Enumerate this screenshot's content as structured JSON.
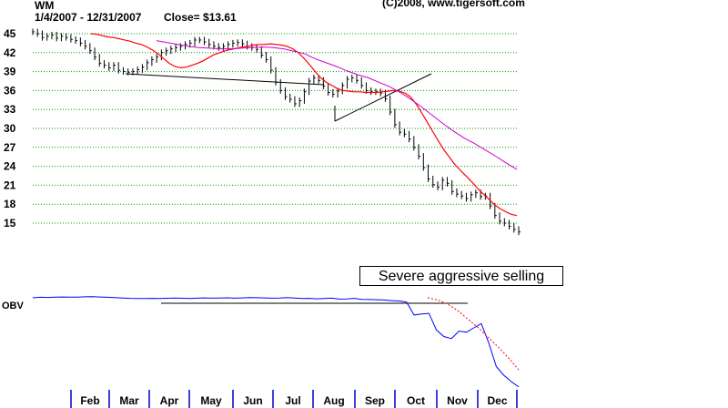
{
  "header": {
    "ticker": "WM",
    "date_range": "1/4/2007 - 12/31/2007",
    "close_label": "Close= $13.61",
    "copyright": "(C)2008, www.tigersoft.com"
  },
  "annotation": "Severe aggressive selling",
  "colors": {
    "price": "#000000",
    "ma_short": "#ff0000",
    "ma_long": "#cc00cc",
    "obv": "#0000ff",
    "obv_ma": "#ff0000",
    "grid": "#009900",
    "month_tick": "#0000cc"
  },
  "chart_data": [
    {
      "type": "line",
      "title": "WM",
      "series": [
        {
          "values": [
            45.3,
            45.0,
            44.4,
            44.6,
            44.8,
            44.3,
            44.6,
            44.4,
            44.1,
            43.9,
            43.5,
            43.0,
            42.3,
            41.3,
            40.3,
            40.0,
            39.6,
            40.0,
            39.2,
            39.0,
            38.9,
            39.0,
            39.3,
            39.7,
            40.4,
            40.9,
            41.3,
            42.0,
            42.3,
            42.6,
            42.8,
            43.0,
            43.3,
            43.5,
            44.0,
            44.0,
            43.7,
            43.3,
            43.0,
            42.8,
            43.0,
            43.3,
            43.5,
            43.6,
            43.4,
            43.0,
            42.8,
            42.5,
            41.6,
            40.9,
            39.2,
            37.3,
            36.0,
            35.0,
            34.6,
            33.9,
            34.4,
            35.8,
            37.5,
            38.0,
            37.6,
            36.7,
            35.7,
            35.4,
            35.9,
            36.8,
            37.8,
            38.0,
            37.6,
            36.8,
            36.0,
            35.8,
            35.8,
            35.6,
            34.7,
            32.6,
            30.6,
            29.4,
            29.1,
            28.3,
            27.0,
            25.6,
            23.8,
            22.0,
            21.1,
            20.7,
            21.8,
            21.3,
            20.0,
            19.6,
            19.3,
            18.9,
            19.5,
            19.8,
            19.2,
            19.3,
            17.7,
            16.2,
            15.3,
            15.0,
            14.5,
            14.0,
            13.6
          ]
        },
        {
          "values": [
            45.0,
            44.9,
            44.7,
            44.5,
            44.4,
            44.2,
            44.0,
            43.8,
            43.5,
            43.3,
            42.9,
            42.4,
            41.8,
            41.0,
            40.3,
            39.8,
            39.6,
            39.7,
            40.0,
            40.3,
            40.7,
            41.2,
            41.7,
            42.0,
            42.3,
            42.5,
            42.7,
            42.9,
            43.0,
            43.2,
            43.3,
            43.3,
            43.4,
            43.3,
            43.2,
            43.0,
            42.6,
            42.0,
            41.1,
            40.1,
            39.0,
            38.0,
            37.3,
            36.8,
            36.3,
            36.0,
            35.9,
            35.8,
            35.8,
            35.7,
            35.7,
            35.7,
            35.8,
            35.9,
            36.0,
            35.9,
            35.6,
            35.0,
            33.9,
            32.5,
            31.0,
            29.5,
            28.0,
            26.6,
            25.4,
            24.2,
            23.3,
            22.4,
            21.5,
            20.5,
            19.6,
            18.8,
            17.9,
            17.3,
            16.8,
            16.4,
            16.2
          ]
        },
        {
          "values": [
            43.9,
            43.6,
            43.3,
            43.0,
            42.8,
            42.7,
            42.6,
            42.6,
            42.7,
            42.8,
            42.9,
            42.8,
            42.6,
            42.2,
            41.8,
            41.0,
            40.4,
            39.8,
            39.1,
            38.5,
            38.0,
            37.3,
            36.6,
            35.7,
            34.6,
            33.4,
            32.1,
            30.8,
            29.6,
            28.5,
            27.6,
            26.6,
            25.6,
            24.5,
            23.5
          ]
        }
      ],
      "yticks": [
        45,
        42,
        39,
        36,
        33,
        30,
        27,
        24,
        21,
        18,
        15
      ],
      "ylim": [
        13.5,
        46
      ],
      "grid": true
    },
    {
      "type": "line",
      "ylabel": "OBV",
      "series": [
        {
          "values": [
            0,
            0.05,
            0.03,
            0.06,
            0.08,
            0.07,
            0.06,
            0.09,
            0.11,
            0.08,
            0.05,
            0.02,
            -0.02,
            -0.05,
            -0.06,
            -0.07,
            -0.05,
            -0.07,
            -0.04,
            -0.02,
            -0.04,
            -0.06,
            -0.03,
            -0.01,
            -0.03,
            -0.02,
            0.0,
            -0.03,
            -0.01,
            0.02,
            0.01,
            -0.01,
            -0.03,
            -0.02,
            0.02,
            -0.02,
            -0.06,
            -0.05,
            -0.09,
            -0.07,
            -0.03,
            -0.12,
            -0.1,
            -0.05,
            -0.14,
            -0.16,
            -0.18,
            -0.2,
            -0.26,
            -0.3,
            -0.4,
            -1.6,
            -1.5,
            -1.45,
            -3.0,
            -3.6,
            -3.8,
            -3.1,
            -3.2,
            -2.8,
            -2.4,
            -4.2,
            -6.4,
            -7.2,
            -7.8,
            -8.3
          ]
        },
        {
          "values": [
            0.0,
            -0.2,
            -0.6,
            -1.2,
            -2.0,
            -2.8,
            -3.7,
            -4.6,
            -5.6,
            -6.7
          ]
        }
      ],
      "grid": false
    }
  ],
  "x_axis": {
    "months": [
      "Feb",
      "Mar",
      "Apr",
      "May",
      "Jun",
      "Jul",
      "Aug",
      "Sep",
      "Oct",
      "Nov",
      "Dec"
    ]
  }
}
